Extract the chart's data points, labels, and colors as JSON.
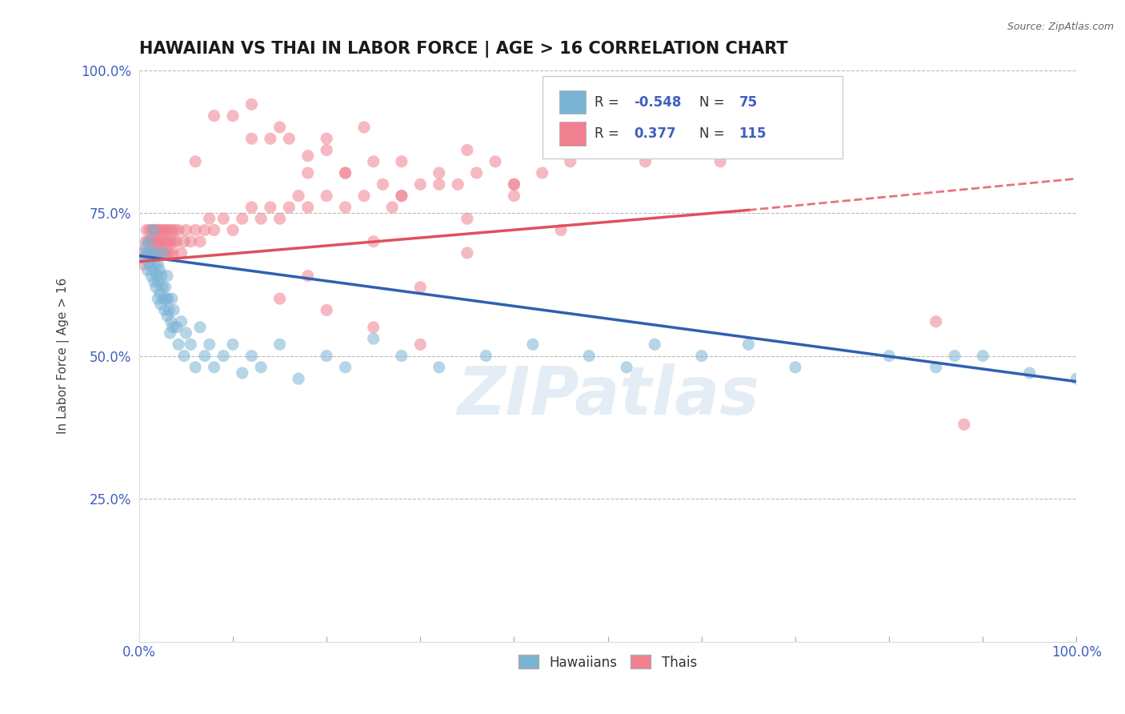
{
  "title": "HAWAIIAN VS THAI IN LABOR FORCE | AGE > 16 CORRELATION CHART",
  "source_text": "Source: ZipAtlas.com",
  "ylabel": "In Labor Force | Age > 16",
  "xlim": [
    0.0,
    1.0
  ],
  "ylim": [
    0.0,
    1.0
  ],
  "xticks": [
    0.0,
    0.1,
    0.2,
    0.3,
    0.4,
    0.5,
    0.6,
    0.7,
    0.8,
    0.9,
    1.0
  ],
  "yticks": [
    0.0,
    0.25,
    0.5,
    0.75,
    1.0
  ],
  "hawaiian_R": -0.548,
  "hawaiian_N": 75,
  "thai_R": 0.377,
  "thai_N": 115,
  "hawaiian_color": "#7ab3d4",
  "thai_color": "#f08090",
  "hawaiian_line_color": "#3060b0",
  "thai_line_color": "#e05060",
  "background_color": "#ffffff",
  "grid_color": "#bbbbbb",
  "watermark_text": "ZIPatlas",
  "title_fontsize": 15,
  "axis_label_fontsize": 11,
  "tick_fontsize": 12,
  "legend_color": "#4060c0",
  "hawaiian_x": [
    0.005,
    0.007,
    0.008,
    0.009,
    0.01,
    0.011,
    0.012,
    0.013,
    0.014,
    0.015,
    0.015,
    0.016,
    0.017,
    0.018,
    0.018,
    0.019,
    0.02,
    0.02,
    0.021,
    0.022,
    0.022,
    0.023,
    0.024,
    0.025,
    0.025,
    0.026,
    0.027,
    0.028,
    0.029,
    0.03,
    0.03,
    0.031,
    0.032,
    0.033,
    0.034,
    0.035,
    0.036,
    0.037,
    0.04,
    0.042,
    0.045,
    0.048,
    0.05,
    0.055,
    0.06,
    0.065,
    0.07,
    0.075,
    0.08,
    0.09,
    0.1,
    0.11,
    0.12,
    0.13,
    0.15,
    0.17,
    0.2,
    0.22,
    0.25,
    0.28,
    0.32,
    0.37,
    0.42,
    0.48,
    0.52,
    0.55,
    0.6,
    0.65,
    0.7,
    0.8,
    0.85,
    0.87,
    0.9,
    0.95,
    1.0
  ],
  "hawaiian_y": [
    0.67,
    0.69,
    0.68,
    0.65,
    0.7,
    0.66,
    0.68,
    0.64,
    0.67,
    0.65,
    0.72,
    0.63,
    0.66,
    0.68,
    0.62,
    0.64,
    0.66,
    0.6,
    0.63,
    0.65,
    0.61,
    0.59,
    0.64,
    0.62,
    0.68,
    0.6,
    0.58,
    0.62,
    0.6,
    0.64,
    0.57,
    0.6,
    0.58,
    0.54,
    0.56,
    0.6,
    0.55,
    0.58,
    0.55,
    0.52,
    0.56,
    0.5,
    0.54,
    0.52,
    0.48,
    0.55,
    0.5,
    0.52,
    0.48,
    0.5,
    0.52,
    0.47,
    0.5,
    0.48,
    0.52,
    0.46,
    0.5,
    0.48,
    0.53,
    0.5,
    0.48,
    0.5,
    0.52,
    0.5,
    0.48,
    0.52,
    0.5,
    0.52,
    0.48,
    0.5,
    0.48,
    0.5,
    0.5,
    0.47,
    0.46
  ],
  "thai_x": [
    0.003,
    0.005,
    0.007,
    0.008,
    0.009,
    0.01,
    0.011,
    0.012,
    0.013,
    0.014,
    0.015,
    0.015,
    0.016,
    0.017,
    0.018,
    0.018,
    0.019,
    0.02,
    0.02,
    0.021,
    0.022,
    0.022,
    0.023,
    0.024,
    0.025,
    0.025,
    0.026,
    0.027,
    0.028,
    0.029,
    0.03,
    0.03,
    0.031,
    0.032,
    0.033,
    0.034,
    0.035,
    0.036,
    0.037,
    0.038,
    0.04,
    0.042,
    0.045,
    0.048,
    0.05,
    0.055,
    0.06,
    0.065,
    0.07,
    0.075,
    0.08,
    0.09,
    0.1,
    0.11,
    0.12,
    0.13,
    0.14,
    0.15,
    0.16,
    0.17,
    0.18,
    0.2,
    0.22,
    0.24,
    0.26,
    0.28,
    0.3,
    0.32,
    0.34,
    0.36,
    0.38,
    0.4,
    0.43,
    0.46,
    0.5,
    0.54,
    0.58,
    0.62,
    0.66,
    0.7,
    0.85,
    0.88,
    0.15,
    0.2,
    0.25,
    0.3,
    0.35,
    0.25,
    0.3,
    0.18,
    0.35,
    0.4,
    0.45,
    0.22,
    0.27,
    0.32,
    0.2,
    0.25,
    0.15,
    0.18,
    0.22,
    0.28,
    0.35,
    0.4,
    0.12,
    0.16,
    0.2,
    0.24,
    0.28,
    0.1,
    0.14,
    0.18,
    0.08,
    0.12,
    0.06
  ],
  "thai_y": [
    0.68,
    0.66,
    0.7,
    0.72,
    0.68,
    0.7,
    0.72,
    0.68,
    0.7,
    0.72,
    0.68,
    0.7,
    0.72,
    0.68,
    0.7,
    0.72,
    0.68,
    0.7,
    0.72,
    0.68,
    0.7,
    0.72,
    0.68,
    0.7,
    0.72,
    0.68,
    0.7,
    0.72,
    0.68,
    0.7,
    0.72,
    0.68,
    0.7,
    0.72,
    0.68,
    0.7,
    0.72,
    0.68,
    0.7,
    0.72,
    0.7,
    0.72,
    0.68,
    0.7,
    0.72,
    0.7,
    0.72,
    0.7,
    0.72,
    0.74,
    0.72,
    0.74,
    0.72,
    0.74,
    0.76,
    0.74,
    0.76,
    0.74,
    0.76,
    0.78,
    0.76,
    0.78,
    0.76,
    0.78,
    0.8,
    0.78,
    0.8,
    0.82,
    0.8,
    0.82,
    0.84,
    0.8,
    0.82,
    0.84,
    0.86,
    0.84,
    0.86,
    0.84,
    0.86,
    0.88,
    0.56,
    0.38,
    0.6,
    0.58,
    0.7,
    0.62,
    0.68,
    0.55,
    0.52,
    0.64,
    0.74,
    0.78,
    0.72,
    0.82,
    0.76,
    0.8,
    0.88,
    0.84,
    0.9,
    0.85,
    0.82,
    0.78,
    0.86,
    0.8,
    0.94,
    0.88,
    0.86,
    0.9,
    0.84,
    0.92,
    0.88,
    0.82,
    0.92,
    0.88,
    0.84
  ],
  "hawaiian_trend_x0": 0.0,
  "hawaiian_trend_y0": 0.675,
  "hawaiian_trend_x1": 1.0,
  "hawaiian_trend_y1": 0.455,
  "thai_trend_x0": 0.0,
  "thai_trend_y0": 0.665,
  "thai_trend_x1": 0.65,
  "thai_trend_y1": 0.755,
  "thai_trend_ext_x1": 1.0,
  "thai_trend_ext_y1": 0.81
}
